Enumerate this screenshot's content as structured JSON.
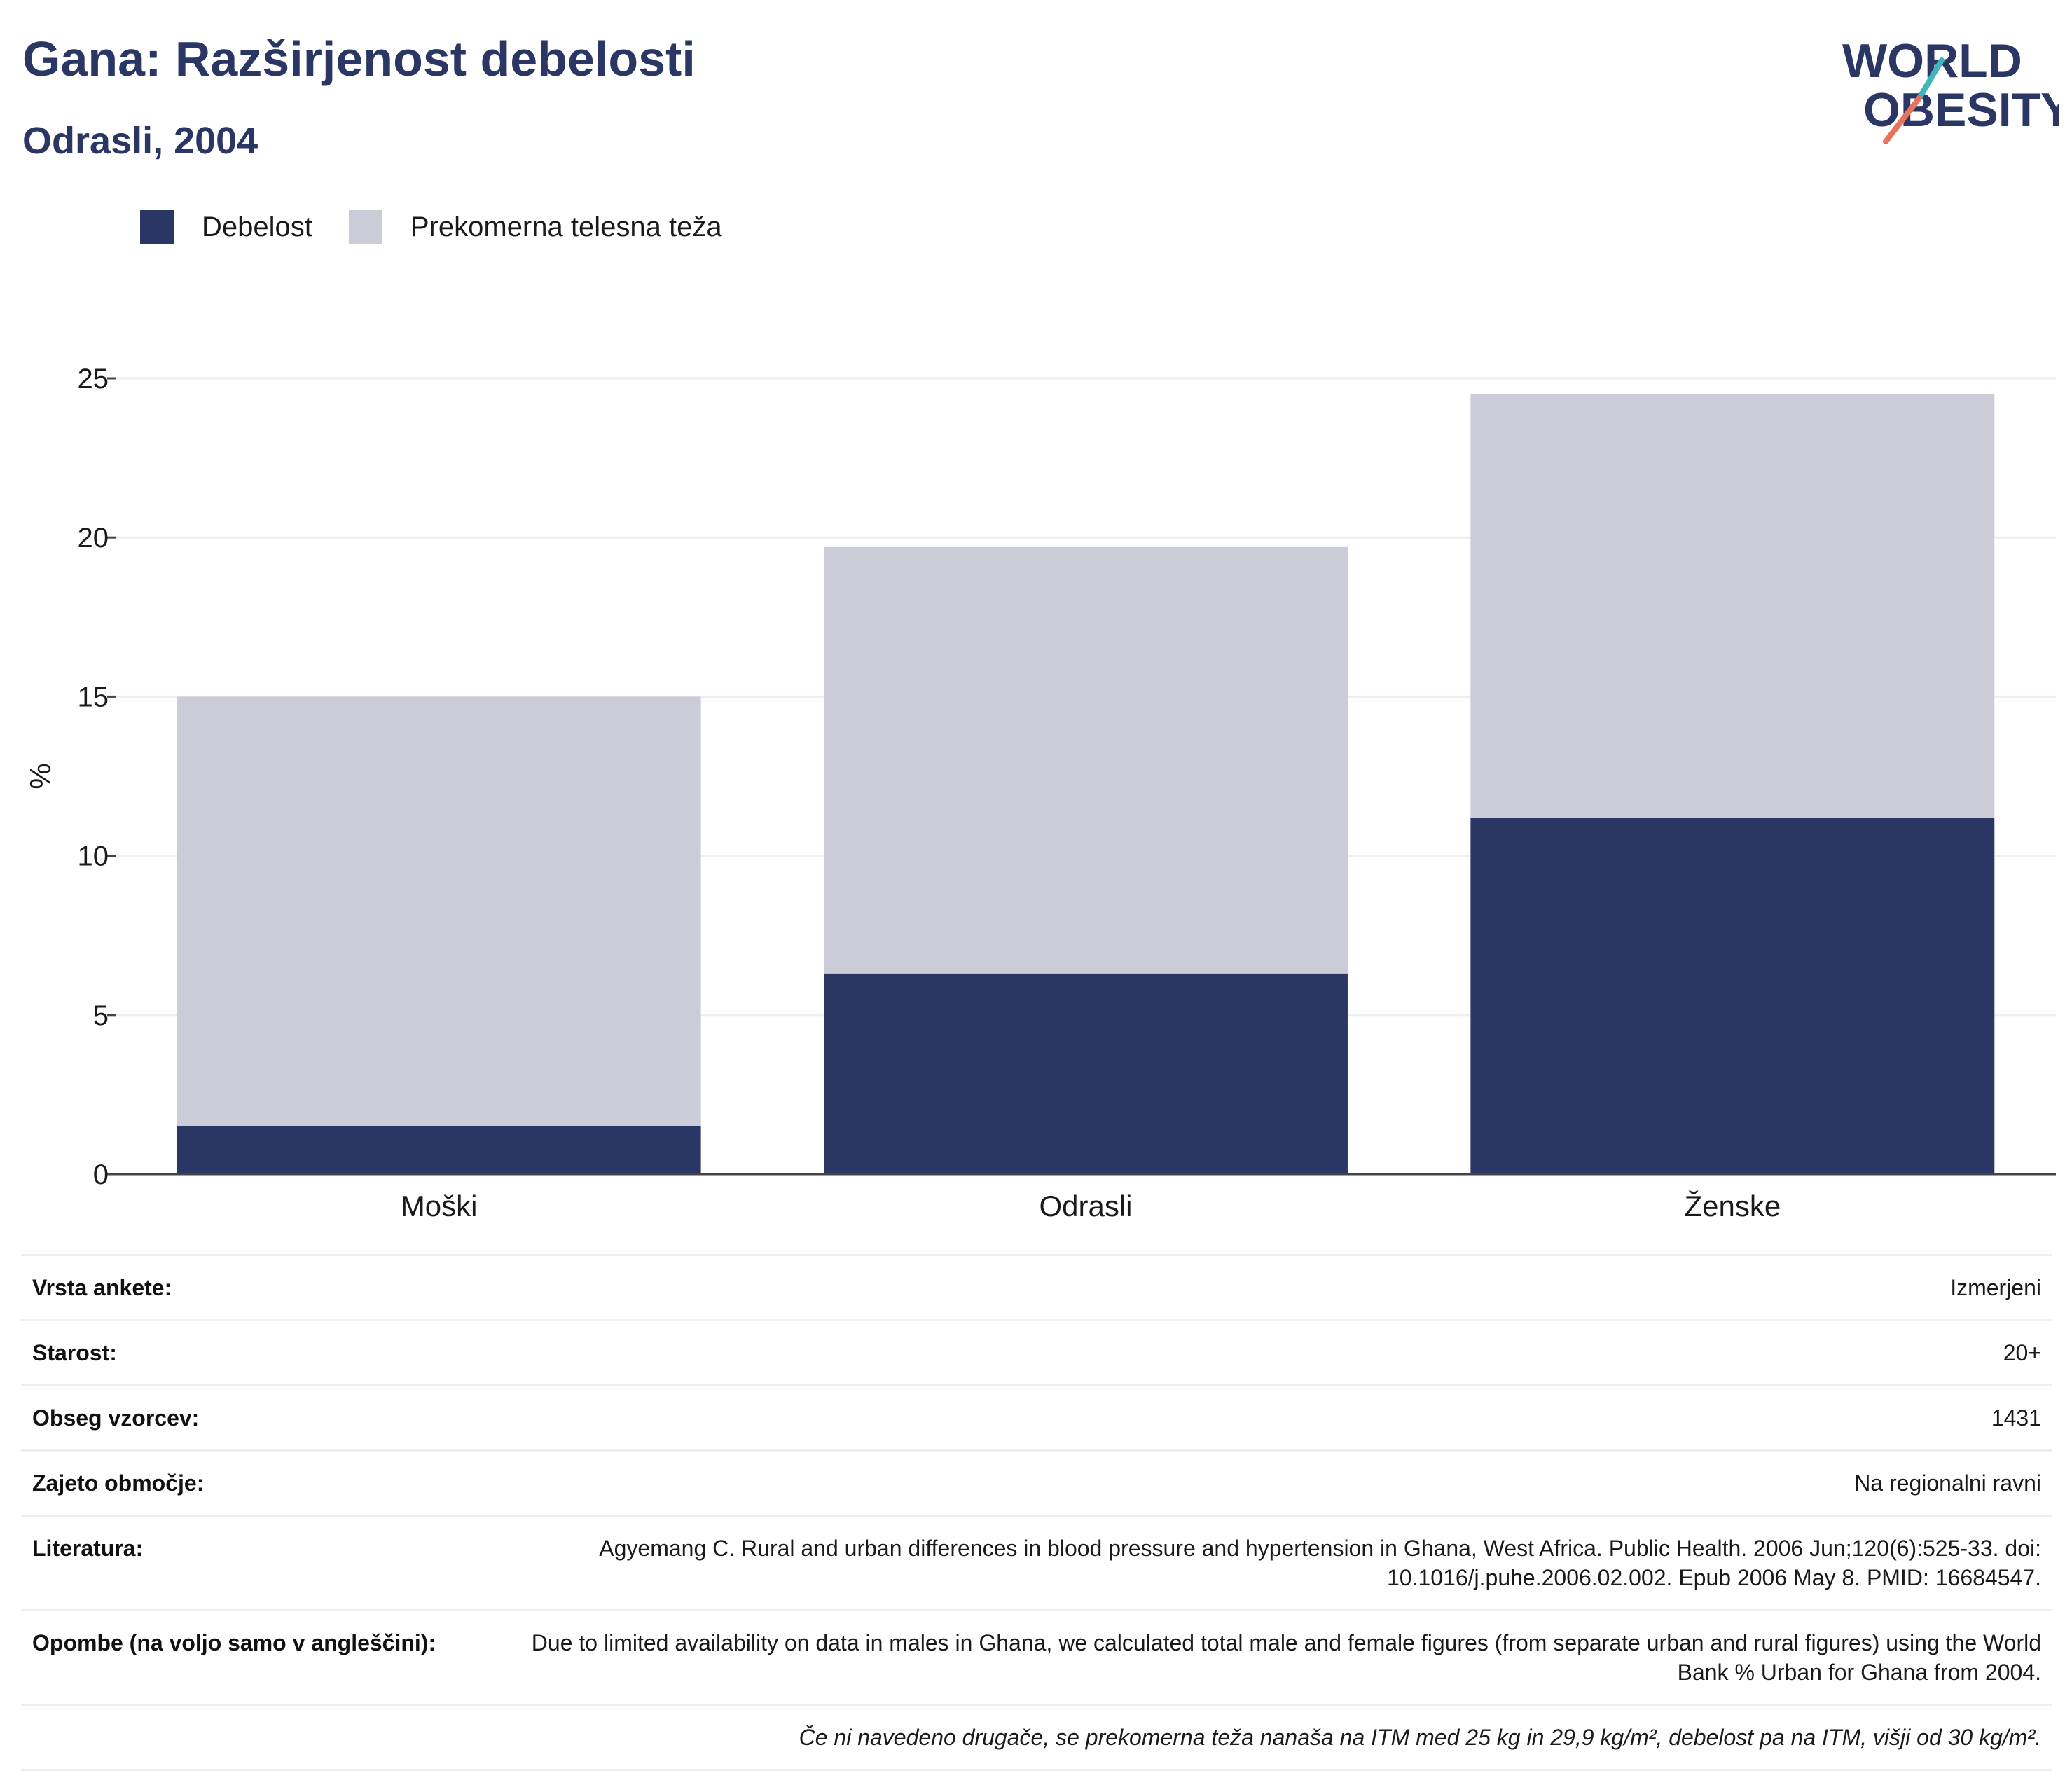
{
  "title": "Gana: Razširjenost debelosti",
  "subtitle": "Odrasli, 2004",
  "logo": {
    "line1": "WORLD",
    "line2": "OBESITY",
    "color_navy": "#2a3663",
    "color_teal": "#3fb6bd",
    "color_coral": "#e8735a"
  },
  "colors": {
    "obesity": "#2a3663",
    "overweight": "#cbccd8",
    "grid": "#eeeeee",
    "axis": "#444444"
  },
  "chart_data": {
    "type": "bar",
    "stacked": true,
    "categories": [
      "Moški",
      "Odrasli",
      "Ženske"
    ],
    "series": [
      {
        "name": "Debelost",
        "values": [
          1.5,
          6.3,
          11.2
        ]
      },
      {
        "name": "Prekomerna telesna teža",
        "values": [
          13.5,
          13.4,
          13.3
        ]
      }
    ],
    "totals": [
      15.0,
      19.7,
      24.5
    ],
    "ylabel": "%",
    "ylim": [
      0,
      25
    ],
    "yticks": [
      0,
      5,
      10,
      15,
      20,
      25
    ],
    "grid": true,
    "legend_position": "top-left"
  },
  "info": [
    {
      "label": "Vrsta ankete:",
      "value": "Izmerjeni"
    },
    {
      "label": "Starost:",
      "value": "20+"
    },
    {
      "label": "Obseg vzorcev:",
      "value": "1431"
    },
    {
      "label": "Zajeto območje:",
      "value": "Na regionalni ravni"
    },
    {
      "label": "Literatura:",
      "value": "Agyemang C. Rural and urban differences in blood pressure and hypertension in Ghana, West Africa. Public Health. 2006 Jun;120(6):525-33. doi: 10.1016/j.puhe.2006.02.002. Epub 2006 May 8. PMID: 16684547."
    },
    {
      "label": "Opombe (na voljo samo v angleščini):",
      "value": "Due to limited availability on data in males in Ghana, we calculated total male and female figures (from separate urban and rural figures) using the World Bank % Urban for Ghana from 2004."
    }
  ],
  "footnote": "Če ni navedeno drugače, se prekomerna teža nanaša na ITM med 25 kg in 29,9 kg/m², debelost pa na ITM, višji od 30 kg/m²."
}
